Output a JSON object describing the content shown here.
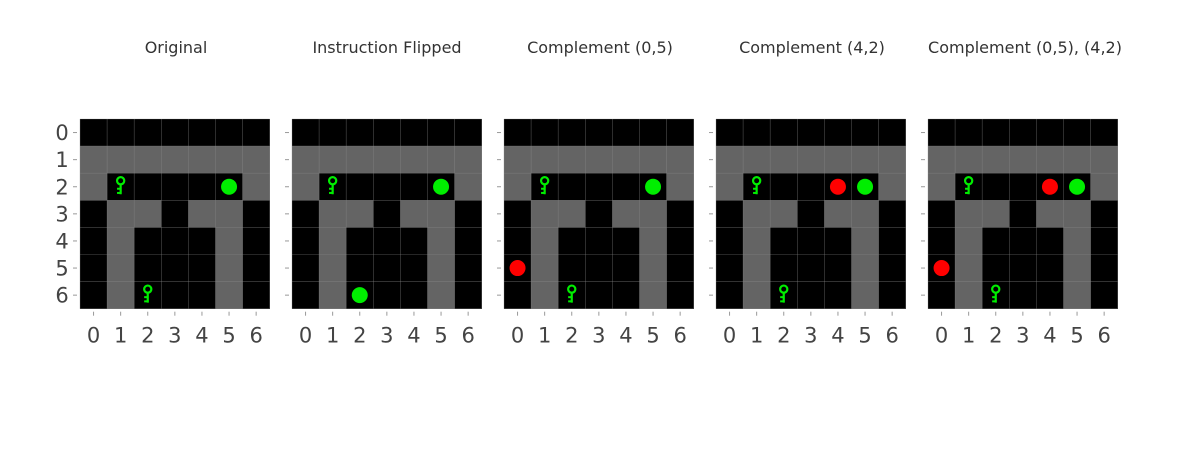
{
  "panels": [
    {
      "title": "Original",
      "goals": [
        {
          "x": 5,
          "y": 2,
          "color": "#00ee00"
        }
      ],
      "keys": [
        {
          "x": 1,
          "y": 2
        },
        {
          "x": 2,
          "y": 6
        }
      ]
    },
    {
      "title": "Instruction Flipped",
      "goals": [
        {
          "x": 5,
          "y": 2,
          "color": "#00ee00"
        },
        {
          "x": 2,
          "y": 6,
          "color": "#00ee00"
        }
      ],
      "keys": [
        {
          "x": 1,
          "y": 2
        }
      ]
    },
    {
      "title": "Complement (0,5)",
      "goals": [
        {
          "x": 5,
          "y": 2,
          "color": "#00ee00"
        },
        {
          "x": 0,
          "y": 5,
          "color": "#ff0000"
        }
      ],
      "keys": [
        {
          "x": 1,
          "y": 2
        },
        {
          "x": 2,
          "y": 6
        }
      ]
    },
    {
      "title": "Complement (4,2)",
      "goals": [
        {
          "x": 5,
          "y": 2,
          "color": "#00ee00"
        },
        {
          "x": 4,
          "y": 2,
          "color": "#ff0000"
        }
      ],
      "keys": [
        {
          "x": 1,
          "y": 2
        },
        {
          "x": 2,
          "y": 6
        }
      ]
    },
    {
      "title": "Complement (0,5), (4,2)",
      "goals": [
        {
          "x": 5,
          "y": 2,
          "color": "#00ee00"
        },
        {
          "x": 4,
          "y": 2,
          "color": "#ff0000"
        },
        {
          "x": 0,
          "y": 5,
          "color": "#ff0000"
        }
      ],
      "keys": [
        {
          "x": 1,
          "y": 2
        },
        {
          "x": 2,
          "y": 6
        }
      ]
    }
  ],
  "grid": {
    "rows": [
      [
        0,
        0,
        0,
        0,
        0,
        0,
        0
      ],
      [
        1,
        1,
        1,
        1,
        1,
        1,
        1
      ],
      [
        1,
        0,
        0,
        0,
        0,
        0,
        1
      ],
      [
        0,
        1,
        1,
        0,
        1,
        1,
        0
      ],
      [
        0,
        1,
        0,
        0,
        0,
        1,
        0
      ],
      [
        0,
        1,
        0,
        0,
        0,
        1,
        0
      ],
      [
        0,
        1,
        0,
        0,
        0,
        1,
        0
      ]
    ]
  },
  "x_ticks": [
    "0",
    "1",
    "2",
    "3",
    "4",
    "5",
    "6"
  ],
  "y_ticks": [
    "0",
    "1",
    "2",
    "3",
    "4",
    "5",
    "6"
  ],
  "colors": {
    "wall": "#000000",
    "floor": "#646464",
    "key": "#00ee00",
    "grid_line": "#8a8a8a",
    "title_text": "#333333",
    "tick_text": "#444444"
  }
}
